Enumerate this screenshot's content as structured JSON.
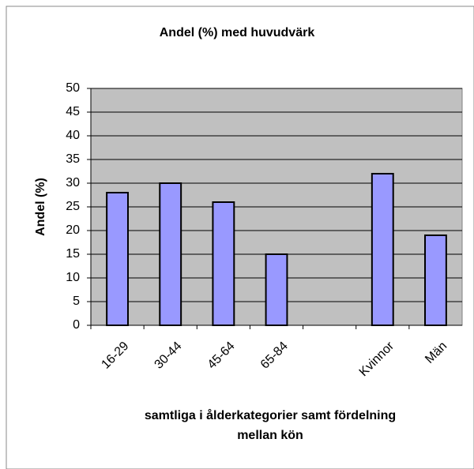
{
  "chart_data": {
    "type": "bar",
    "title": "Andel (%) med huvudvärk",
    "ylabel": "Andel (%)",
    "xlabel": [
      "samtliga i ålderkategorier samt fördelning",
      "mellan kön"
    ],
    "categories": [
      "16-29",
      "30-44",
      "45-64",
      "65-84",
      null,
      "Kvinnor",
      "Män"
    ],
    "values": [
      28,
      30,
      26,
      15,
      null,
      32,
      19
    ],
    "color": "#9999ff",
    "ylim": [
      0,
      50
    ],
    "yticks": [
      0,
      5,
      10,
      15,
      20,
      25,
      30,
      35,
      40,
      45,
      50
    ],
    "grid": true
  }
}
